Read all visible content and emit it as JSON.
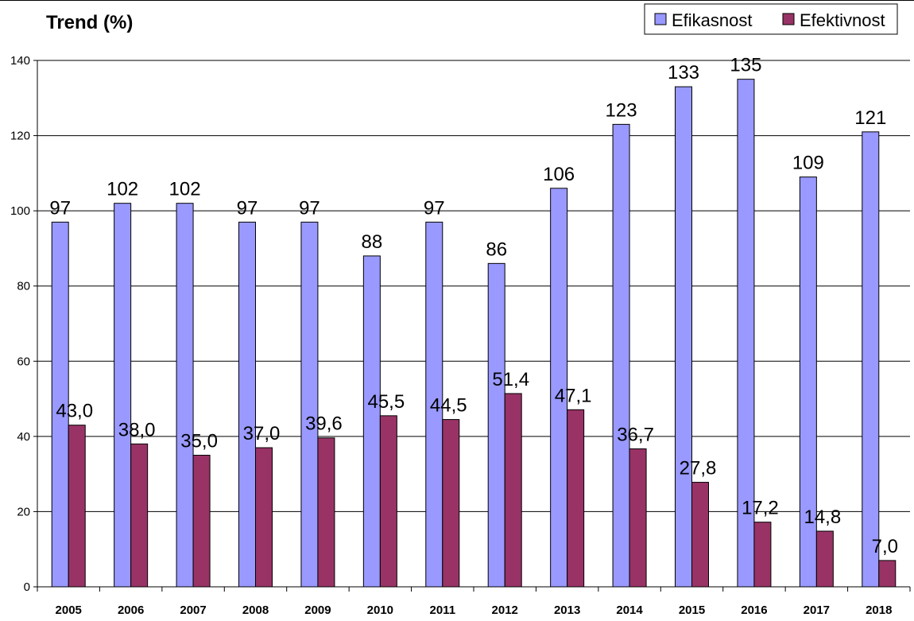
{
  "chart_data": {
    "type": "bar",
    "title": "Trend (%)",
    "xlabel": "",
    "ylabel": "",
    "categories": [
      "2005",
      "2006",
      "2007",
      "2008",
      "2009",
      "2010",
      "2011",
      "2012",
      "2013",
      "2014",
      "2015",
      "2016",
      "2017",
      "2018"
    ],
    "series": [
      {
        "name": "Efikasnost",
        "color": "#9999ff",
        "values": [
          97,
          102,
          102,
          97,
          97,
          88,
          97,
          86,
          106,
          123,
          133,
          135,
          109,
          121
        ],
        "labels": [
          "97",
          "102",
          "102",
          "97",
          "97",
          "88",
          "97",
          "86",
          "106",
          "123",
          "133",
          "135",
          "109",
          "121"
        ]
      },
      {
        "name": "Efektivnost",
        "color": "#993366",
        "values": [
          43.0,
          38.0,
          35.0,
          37.0,
          39.6,
          45.5,
          44.5,
          51.4,
          47.1,
          36.7,
          27.8,
          17.2,
          14.8,
          7.0
        ],
        "labels": [
          "43,0",
          "38,0",
          "35,0",
          "37,0",
          "39,6",
          "45,5",
          "44,5",
          "51,4",
          "47,1",
          "36,7",
          "27,8",
          "17,2",
          "14,8",
          "7,0"
        ]
      }
    ],
    "ylim": [
      0,
      140
    ],
    "yticks": [
      0,
      20,
      40,
      60,
      80,
      100,
      120,
      140
    ],
    "grid": true,
    "legend_position": "top-right"
  }
}
